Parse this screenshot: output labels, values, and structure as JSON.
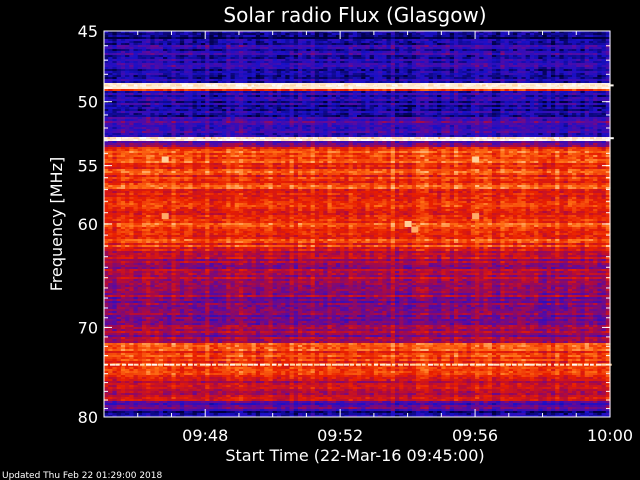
{
  "chart_data": {
    "type": "heatmap",
    "title": "Solar radio Flux (Glasgow)",
    "xlabel": "Start Time (22-Mar-16 09:45:00)",
    "ylabel": "Frequency [MHz]",
    "footer": "Updated Thu Feb 22 01:29:00 2018",
    "x_range_minutes": [
      0,
      15
    ],
    "x_ticks": [
      {
        "minute": 3,
        "label": "09:48"
      },
      {
        "minute": 7,
        "label": "09:52"
      },
      {
        "minute": 11,
        "label": "09:56"
      },
      {
        "minute": 15,
        "label": "10:00"
      }
    ],
    "y_range_mhz": [
      45,
      80
    ],
    "y_scale": "log",
    "y_ticks": [
      {
        "mhz": 45,
        "label": "45"
      },
      {
        "mhz": 50,
        "label": "50"
      },
      {
        "mhz": 55,
        "label": "55"
      },
      {
        "mhz": 60,
        "label": "60"
      },
      {
        "mhz": 70,
        "label": "70"
      },
      {
        "mhz": 80,
        "label": "80"
      }
    ],
    "colormap": [
      "#000040",
      "#1a10c8",
      "#5a0aa0",
      "#b00a3c",
      "#e81e00",
      "#ff6e14",
      "#ffd4a0",
      "#ffffff"
    ],
    "bands": [
      {
        "from": 45,
        "to": 45.5,
        "level": 0.05
      },
      {
        "from": 45.5,
        "to": 48.6,
        "level": 0.16
      },
      {
        "from": 48.6,
        "to": 49.0,
        "level": 0.98
      },
      {
        "from": 49.0,
        "to": 49.2,
        "level": 0.6
      },
      {
        "from": 49.2,
        "to": 51.2,
        "level": 0.16
      },
      {
        "from": 51.2,
        "to": 52.6,
        "level": 0.22
      },
      {
        "from": 52.6,
        "to": 53.0,
        "level": 0.9
      },
      {
        "from": 53.0,
        "to": 53.4,
        "level": 0.35
      },
      {
        "from": 53.4,
        "to": 62.0,
        "level": 0.62
      },
      {
        "from": 62.0,
        "to": 63.2,
        "level": 0.5
      },
      {
        "from": 63.2,
        "to": 66.0,
        "level": 0.42
      },
      {
        "from": 66.0,
        "to": 71.5,
        "level": 0.38
      },
      {
        "from": 71.5,
        "to": 72.8,
        "level": 0.62
      },
      {
        "from": 72.8,
        "to": 75.5,
        "level": 0.6
      },
      {
        "from": 75.5,
        "to": 78.0,
        "level": 0.48
      },
      {
        "from": 78.0,
        "to": 79.2,
        "level": 0.3
      },
      {
        "from": 79.2,
        "to": 80.0,
        "level": 0.12
      }
    ],
    "bright_lines_mhz": [
      48.8,
      52.8,
      74.0
    ],
    "hotspots": [
      {
        "minute": 1.8,
        "mhz": 54.5,
        "level": 0.85
      },
      {
        "minute": 1.8,
        "mhz": 59.3,
        "level": 0.8
      },
      {
        "minute": 11.0,
        "mhz": 54.5,
        "level": 0.85
      },
      {
        "minute": 11.0,
        "mhz": 59.3,
        "level": 0.8
      },
      {
        "minute": 9.0,
        "mhz": 60.0,
        "level": 0.85
      },
      {
        "minute": 9.2,
        "mhz": 60.5,
        "level": 0.8
      }
    ]
  }
}
